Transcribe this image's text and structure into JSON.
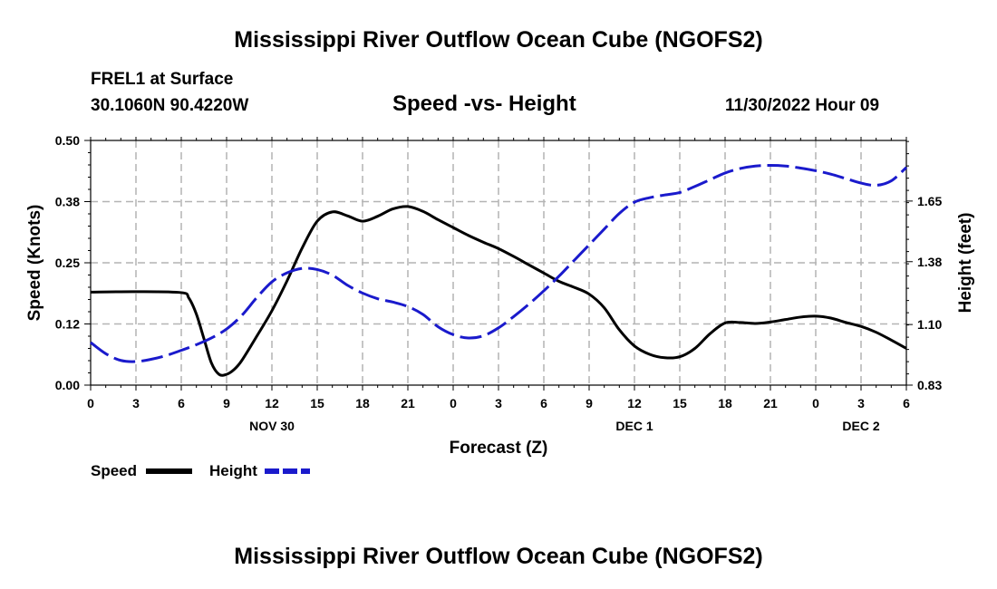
{
  "header": {
    "title_top": "Mississippi River Outflow Ocean Cube (NGOFS2)",
    "station": "FREL1 at Surface",
    "coords": "30.1060N  90.4220W",
    "datetime": "11/30/2022 Hour 09",
    "title_bottom": "Mississippi River Outflow Ocean Cube (NGOFS2)"
  },
  "colors": {
    "speed": "#000000",
    "height": "#1a1acc",
    "grid": "#b4b4b4"
  },
  "chart_data": {
    "type": "line",
    "title": "Speed -vs- Height",
    "xlabel": "Forecast (Z)",
    "ylabel": "Speed (Knots)",
    "y2label": "Height (feet)",
    "xlim": [
      0,
      54
    ],
    "ylim": [
      0,
      0.5
    ],
    "y2lim": [
      0.83,
      1.92
    ],
    "x_tick_values": [
      0,
      3,
      6,
      9,
      12,
      15,
      18,
      21,
      24,
      27,
      30,
      33,
      36,
      39,
      42,
      45,
      48,
      51,
      54
    ],
    "x_tick_labels": [
      "0",
      "3",
      "6",
      "9",
      "12",
      "15",
      "18",
      "21",
      "0",
      "3",
      "6",
      "9",
      "12",
      "15",
      "18",
      "21",
      "0",
      "3",
      "6"
    ],
    "date_labels": [
      {
        "x": 12,
        "text": "NOV 30"
      },
      {
        "x": 36,
        "text": "DEC 1"
      },
      {
        "x": 51,
        "text": "DEC 2"
      }
    ],
    "y_ticks": [
      {
        "value": 0.0,
        "label": "0.00"
      },
      {
        "value": 0.125,
        "label": "0.12"
      },
      {
        "value": 0.25,
        "label": "0.25"
      },
      {
        "value": 0.375,
        "label": "0.38"
      },
      {
        "value": 0.5,
        "label": "0.50"
      }
    ],
    "y2_ticks": [
      {
        "value": 0.83,
        "label": "0.83"
      },
      {
        "value": 1.1,
        "label": "1.10"
      },
      {
        "value": 1.38,
        "label": "1.38"
      },
      {
        "value": 1.65,
        "label": "1.65"
      }
    ],
    "series": [
      {
        "name": "Speed",
        "axis": "left",
        "style": "solid",
        "x": [
          0,
          3,
          6,
          6.5,
          7,
          7.5,
          8,
          8.5,
          9,
          9.5,
          10,
          11,
          12,
          13,
          14,
          15,
          16,
          17,
          18,
          19,
          20,
          21,
          22,
          23,
          24,
          25,
          26,
          27,
          28,
          29,
          30,
          31,
          32,
          33,
          34,
          35,
          36,
          37,
          38,
          39,
          40,
          41,
          42,
          43,
          44,
          45,
          46,
          47,
          48,
          49,
          50,
          51,
          52,
          53,
          54
        ],
        "values": [
          0.19,
          0.191,
          0.189,
          0.178,
          0.145,
          0.095,
          0.045,
          0.022,
          0.022,
          0.032,
          0.05,
          0.1,
          0.152,
          0.213,
          0.28,
          0.335,
          0.354,
          0.346,
          0.335,
          0.345,
          0.36,
          0.365,
          0.355,
          0.338,
          0.322,
          0.306,
          0.292,
          0.279,
          0.263,
          0.246,
          0.229,
          0.212,
          0.2,
          0.186,
          0.158,
          0.113,
          0.08,
          0.063,
          0.056,
          0.058,
          0.075,
          0.105,
          0.127,
          0.128,
          0.126,
          0.129,
          0.134,
          0.139,
          0.141,
          0.137,
          0.128,
          0.12,
          0.108,
          0.092,
          0.075
        ]
      },
      {
        "name": "Height",
        "axis": "right",
        "style": "dashed",
        "x": [
          0,
          1,
          2,
          3,
          4,
          5,
          6,
          7,
          8,
          9,
          10,
          11,
          12,
          13,
          14,
          15,
          16,
          17,
          18,
          19,
          20,
          21,
          22,
          23,
          24,
          25,
          26,
          27,
          28,
          29,
          30,
          31,
          32,
          33,
          34,
          35,
          36,
          37,
          38,
          39,
          40,
          41,
          42,
          43,
          44,
          45,
          46,
          47,
          48,
          49,
          50,
          51,
          52,
          53,
          54
        ],
        "values": [
          1.02,
          0.97,
          0.94,
          0.935,
          0.945,
          0.962,
          0.985,
          1.01,
          1.04,
          1.08,
          1.14,
          1.22,
          1.29,
          1.33,
          1.35,
          1.345,
          1.32,
          1.275,
          1.24,
          1.215,
          1.2,
          1.18,
          1.145,
          1.09,
          1.055,
          1.04,
          1.05,
          1.085,
          1.135,
          1.19,
          1.25,
          1.315,
          1.385,
          1.455,
          1.525,
          1.595,
          1.645,
          1.665,
          1.677,
          1.688,
          1.715,
          1.745,
          1.775,
          1.795,
          1.806,
          1.809,
          1.806,
          1.797,
          1.785,
          1.77,
          1.75,
          1.73,
          1.72,
          1.74,
          1.8
        ]
      }
    ],
    "legend": [
      {
        "name": "Speed",
        "style": "solid"
      },
      {
        "name": "Height",
        "style": "dashed"
      }
    ],
    "legend_position": "bottom-left",
    "grid": true
  }
}
